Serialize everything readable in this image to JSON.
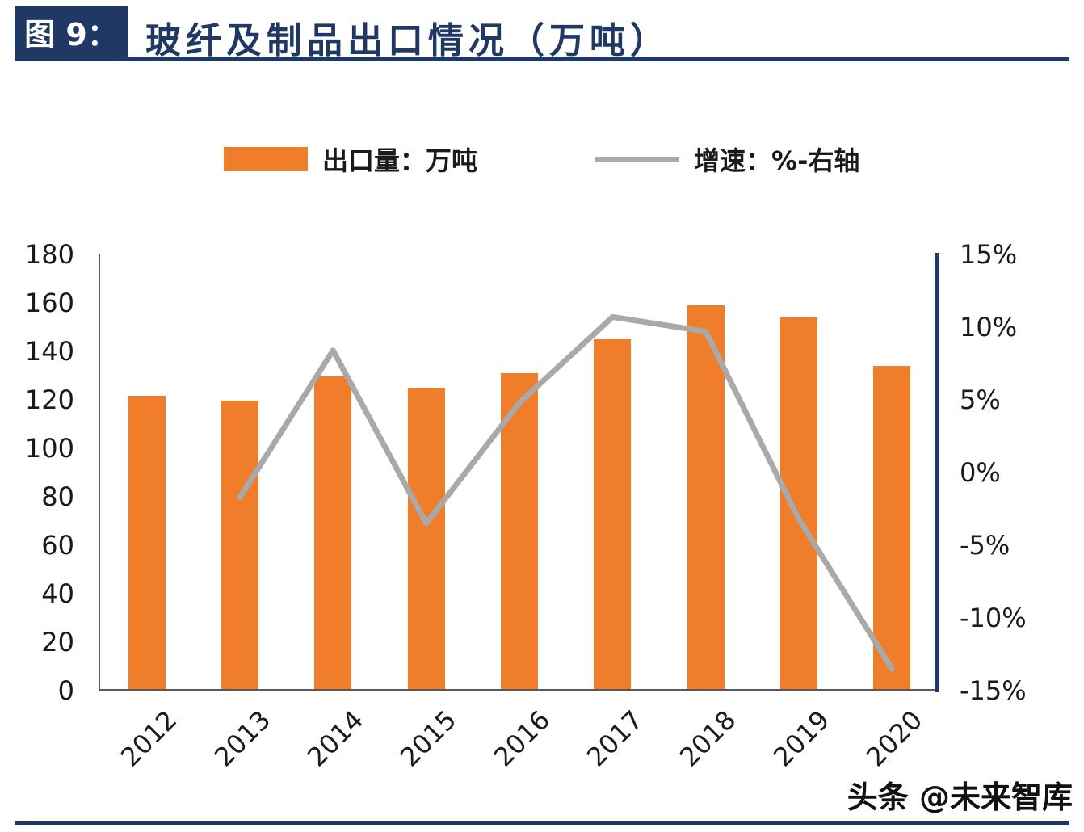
{
  "header": {
    "figure_label": "图 9：",
    "title": "玻纤及制品出口情况（万吨）"
  },
  "legend": {
    "bar_label": "出口量：万吨",
    "line_label": "增速：%-右轴"
  },
  "chart_data": {
    "type": "bar",
    "title": "玻纤及制品出口情况（万吨）",
    "categories": [
      "2012",
      "2013",
      "2014",
      "2015",
      "2016",
      "2017",
      "2018",
      "2019",
      "2020"
    ],
    "series": [
      {
        "name": "出口量：万吨",
        "type": "bar",
        "axis": "left",
        "values": [
          121,
          119,
          129,
          124.5,
          130.5,
          144.5,
          158.5,
          153.5,
          133.5
        ]
      },
      {
        "name": "增速：%-右轴",
        "type": "line",
        "axis": "right",
        "values": [
          null,
          -1.7,
          8.4,
          -3.5,
          4.8,
          10.7,
          9.7,
          -3.2,
          -13.5
        ]
      }
    ],
    "left_axis": {
      "min": 0,
      "max": 180,
      "step": 20
    },
    "right_axis": {
      "min": -15,
      "max": 15,
      "step": 5,
      "suffix": "%"
    },
    "legend_position": "top",
    "grid": false
  },
  "footer": {
    "watermark": "头条 @未来智库"
  },
  "colors": {
    "navy": "#1F3864",
    "bar_orange": "#F07D29",
    "line_gray": "#A9A9A9",
    "axis_text": "#1a1a1a",
    "axis_line": "#595959"
  }
}
